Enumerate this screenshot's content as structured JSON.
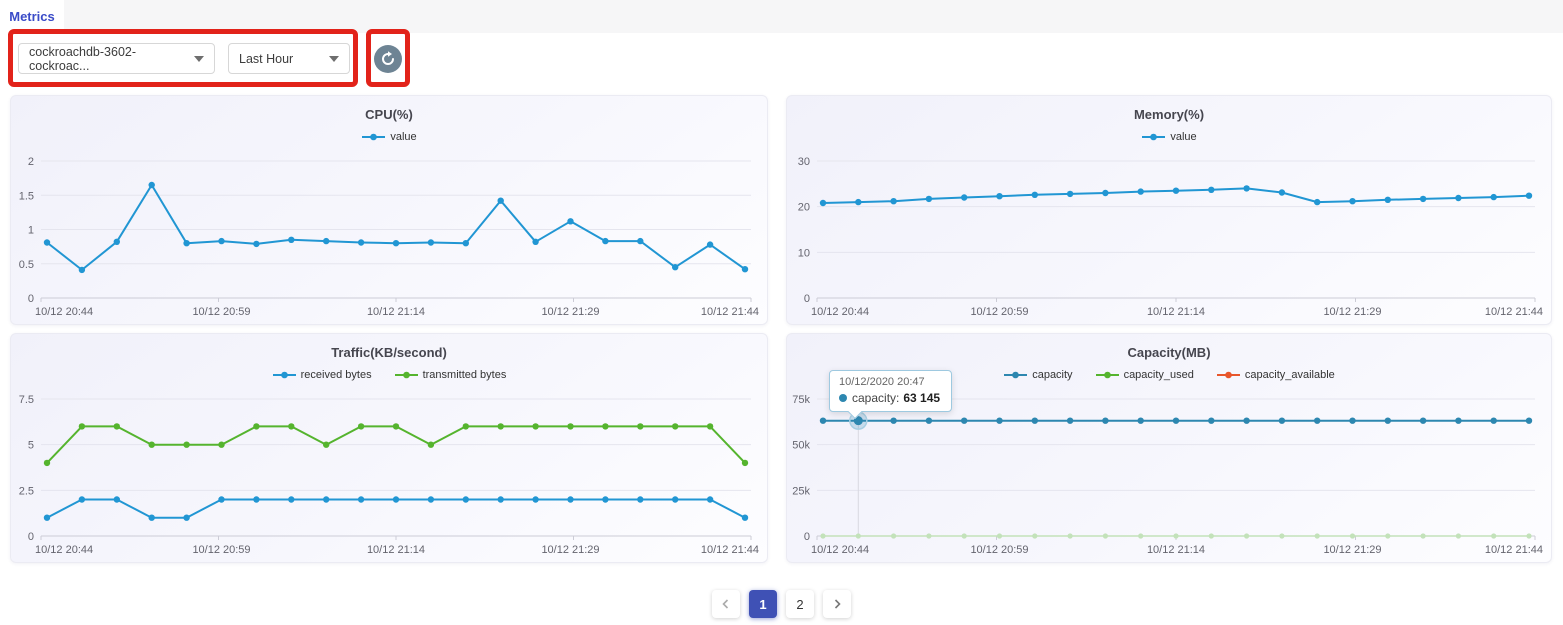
{
  "tab_bar": {
    "tabs": [
      {
        "label": "Metrics",
        "active": true
      }
    ]
  },
  "toolbar": {
    "cluster_select": {
      "value": "cockroachdb-3602-cockroac..."
    },
    "range_select": {
      "value": "Last Hour"
    },
    "refresh_button_label": "refresh",
    "annotation_color": "#e2231a"
  },
  "colors": {
    "series_blue": "#2196d3",
    "series_green": "#55b42e",
    "series_orange": "#e8562b",
    "accent_indigo": "#3f51b5",
    "tab_blue": "#3a4bc8",
    "refresh_button_bg": "#6e8494"
  },
  "pagination": {
    "pages": [
      {
        "label": "1",
        "active": true
      },
      {
        "label": "2",
        "active": false
      }
    ]
  },
  "chart_data": [
    {
      "type": "line",
      "title": "CPU(%)",
      "x_tick_labels": [
        "10/12 20:44",
        "10/12 20:59",
        "10/12 21:14",
        "10/12 21:29",
        "10/12 21:44"
      ],
      "ylim": [
        0,
        2
      ],
      "yticks": [
        0,
        0.5,
        1,
        1.5,
        2
      ],
      "ytick_labels": [
        "0",
        "0.5",
        "1",
        "1.5",
        "2"
      ],
      "grid": true,
      "legend_position": "top",
      "series": [
        {
          "name": "value",
          "color": "#2196d3",
          "values": [
            0.81,
            0.41,
            0.82,
            1.65,
            0.8,
            0.83,
            0.79,
            0.85,
            0.83,
            0.81,
            0.8,
            0.81,
            0.8,
            1.42,
            0.82,
            1.12,
            0.83,
            0.83,
            0.45,
            0.78,
            0.42
          ]
        }
      ]
    },
    {
      "type": "line",
      "title": "Memory(%)",
      "x_tick_labels": [
        "10/12 20:44",
        "10/12 20:59",
        "10/12 21:14",
        "10/12 21:29",
        "10/12 21:44"
      ],
      "ylim": [
        0,
        30
      ],
      "yticks": [
        0,
        10,
        20,
        30
      ],
      "ytick_labels": [
        "0",
        "10",
        "20",
        "30"
      ],
      "grid": true,
      "legend_position": "top",
      "series": [
        {
          "name": "value",
          "color": "#2196d3",
          "values": [
            20.8,
            21.0,
            21.2,
            21.7,
            22.0,
            22.3,
            22.6,
            22.8,
            23.0,
            23.3,
            23.5,
            23.7,
            24.0,
            23.1,
            21.0,
            21.2,
            21.5,
            21.7,
            21.9,
            22.1,
            22.4
          ]
        }
      ]
    },
    {
      "type": "line",
      "title": "Traffic(KB/second)",
      "x_tick_labels": [
        "10/12 20:44",
        "10/12 20:59",
        "10/12 21:14",
        "10/12 21:29",
        "10/12 21:44"
      ],
      "ylim": [
        0,
        7.5
      ],
      "yticks": [
        0,
        2.5,
        5,
        7.5
      ],
      "ytick_labels": [
        "0",
        "2.5",
        "5",
        "7.5"
      ],
      "grid": true,
      "legend_position": "top",
      "series": [
        {
          "name": "received bytes",
          "color": "#2196d3",
          "values": [
            1,
            2,
            2,
            1,
            1,
            2,
            2,
            2,
            2,
            2,
            2,
            2,
            2,
            2,
            2,
            2,
            2,
            2,
            2,
            2,
            1
          ]
        },
        {
          "name": "transmitted bytes",
          "color": "#55b42e",
          "values": [
            4,
            6,
            6,
            5,
            5,
            5,
            6,
            6,
            5,
            6,
            6,
            5,
            6,
            6,
            6,
            6,
            6,
            6,
            6,
            6,
            4
          ]
        }
      ]
    },
    {
      "type": "line",
      "title": "Capacity(MB)",
      "x_tick_labels": [
        "10/12 20:44",
        "10/12 20:59",
        "10/12 21:14",
        "10/12 21:29",
        "10/12 21:44"
      ],
      "ylim": [
        0,
        75000
      ],
      "yticks": [
        0,
        25000,
        50000,
        75000
      ],
      "ytick_labels": [
        "0",
        "25k",
        "50k",
        "75k"
      ],
      "grid": true,
      "legend_position": "top",
      "hover_index": 1,
      "tooltip": {
        "date": "10/12/2020 20:47",
        "series_label": "capacity:",
        "value": "63 145"
      },
      "series": [
        {
          "name": "capacity",
          "color": "#2d87b0",
          "values": [
            63145,
            63145,
            63145,
            63145,
            63145,
            63145,
            63145,
            63145,
            63145,
            63145,
            63145,
            63145,
            63145,
            63145,
            63145,
            63145,
            63145,
            63145,
            63145,
            63145,
            63145
          ]
        },
        {
          "name": "capacity_used",
          "color": "#55b42e",
          "line_color": "#c3e2ba",
          "line_width": 1.5,
          "dot_r": 2.6,
          "values": [
            0,
            0,
            0,
            0,
            0,
            0,
            0,
            0,
            0,
            0,
            0,
            0,
            0,
            0,
            0,
            0,
            0,
            0,
            0,
            0,
            0
          ]
        },
        {
          "name": "capacity_available",
          "color": "#e8562b",
          "values": []
        }
      ]
    }
  ]
}
